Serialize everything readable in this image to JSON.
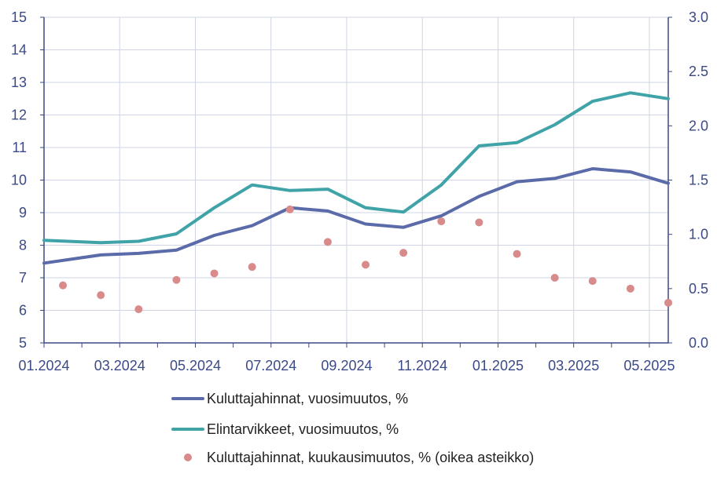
{
  "chart_data": {
    "type": "line",
    "x": [
      "01.2024",
      "02.2024",
      "03.2024",
      "04.2024",
      "05.2024",
      "06.2024",
      "07.2024",
      "08.2024",
      "09.2024",
      "10.2024",
      "11.2024",
      "12.2024",
      "01.2025",
      "02.2025",
      "03.2025",
      "04.2025",
      "05.2025"
    ],
    "x_tick_labels": [
      "01.2024",
      "03.2024",
      "05.2024",
      "07.2024",
      "09.2024",
      "11.2024",
      "01.2025",
      "03.2025",
      "05.2025"
    ],
    "y_left": {
      "ylim": [
        5,
        15
      ],
      "ticks": [
        "5",
        "6",
        "7",
        "8",
        "9",
        "10",
        "11",
        "12",
        "13",
        "14",
        "15"
      ]
    },
    "y_right": {
      "ylim": [
        0,
        3
      ],
      "ticks": [
        "0.0",
        "0.5",
        "1.0",
        "1.5",
        "2.0",
        "2.5",
        "3.0"
      ]
    },
    "grid": true,
    "legend_position": "bottom",
    "series": [
      {
        "name": "Kuluttajahinnat, vuosimuutos, %",
        "type": "line",
        "axis": "left",
        "color": "#5b6aa8",
        "values": [
          7.45,
          7.7,
          7.75,
          7.85,
          8.3,
          8.6,
          9.15,
          9.05,
          8.65,
          8.55,
          8.9,
          9.5,
          9.95,
          10.05,
          10.35,
          10.25,
          9.9
        ]
      },
      {
        "name": "Elintarvikkeet, vuosimuutos, %",
        "type": "line",
        "axis": "left",
        "color": "#3fa3a8",
        "values": [
          8.15,
          8.08,
          8.12,
          8.35,
          9.15,
          9.85,
          9.68,
          9.72,
          9.15,
          9.02,
          9.85,
          11.05,
          11.15,
          11.7,
          12.42,
          12.68,
          12.5
        ]
      },
      {
        "name": "Kuluttajahinnat, kuukausimuutos, % (oikea asteikko)",
        "type": "scatter",
        "axis": "right",
        "color": "#d98a8a",
        "values": [
          0.53,
          0.44,
          0.31,
          0.58,
          0.64,
          0.7,
          1.23,
          0.93,
          0.72,
          0.83,
          1.12,
          1.11,
          0.82,
          0.6,
          0.57,
          0.5,
          0.37
        ]
      }
    ]
  }
}
